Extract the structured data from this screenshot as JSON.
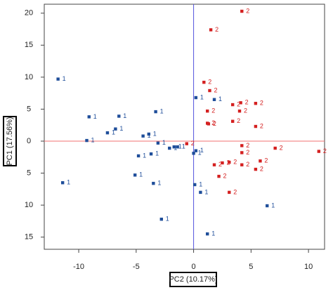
{
  "chart_data": {
    "type": "scatter",
    "xlabel": "PC2 (10.17%)",
    "ylabel": "PC1 (17.56%)",
    "xlim": [
      -13,
      11.4
    ],
    "ylim": [
      -16.9,
      21.4
    ],
    "xticks": [
      -10,
      -5,
      0,
      5,
      10
    ],
    "yticks": [
      20,
      15,
      10,
      5,
      0,
      {
        "value": -5,
        "label": "5"
      },
      {
        "value": -10,
        "label": "10"
      },
      {
        "value": -15,
        "label": "15"
      }
    ],
    "vline": {
      "x": 0,
      "color": "#5555dd"
    },
    "hline": {
      "y": 0,
      "color": "#f07070"
    },
    "series": [
      {
        "name": "1",
        "color": "#1f4e9a",
        "x": [
          -11.8,
          -11.4,
          -9.1,
          -9.3,
          -7.5,
          -6.8,
          -6.5,
          -4.4,
          -3.3,
          -3.9,
          -3.1,
          -4.8,
          -3.7,
          -5.1,
          -2.1,
          -1.7,
          -1.4,
          -3.5,
          -2.8,
          0.2,
          0.2,
          0.1,
          0.6,
          1.8,
          1.2,
          6.4,
          0
        ],
        "values": [
          9.7,
          -6.5,
          3.8,
          0.1,
          1.3,
          1.9,
          3.9,
          0.8,
          4.6,
          1.1,
          -0.3,
          -2.3,
          -2.0,
          -5.3,
          -1.1,
          -0.9,
          -0.9,
          -6.6,
          -12.2,
          6.8,
          -1.5,
          -6.8,
          -8.0,
          6.5,
          -14.5,
          -10.1,
          -1.9
        ]
      },
      {
        "name": "2",
        "color": "#d42020",
        "x": [
          4.2,
          1.5,
          0.9,
          1.4,
          4.1,
          3.4,
          5.4,
          1.2,
          4.0,
          1.2,
          1.3,
          3.4,
          5.4,
          -0.6,
          4.2,
          7.1,
          10.9,
          4.2,
          1.8,
          2.5,
          3.1,
          5.8,
          5.4,
          2.2,
          3.1,
          4.2
        ],
        "values": [
          20.3,
          17.4,
          9.2,
          7.9,
          6.0,
          5.7,
          5.9,
          4.7,
          4.7,
          2.8,
          2.7,
          3.1,
          2.3,
          -0.4,
          -0.7,
          -1.1,
          -1.6,
          -1.8,
          -3.7,
          -3.4,
          -3.3,
          -3.1,
          -4.4,
          -5.5,
          -8.0,
          -3.7
        ]
      }
    ]
  }
}
